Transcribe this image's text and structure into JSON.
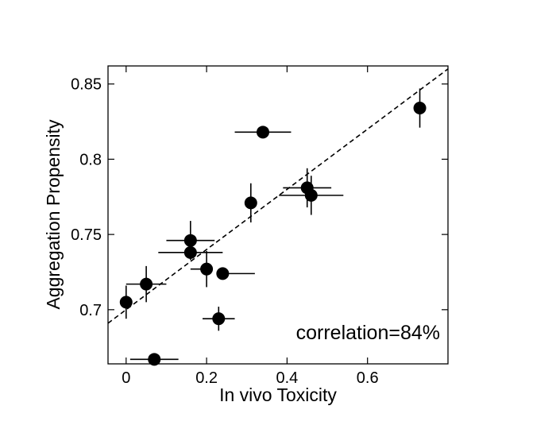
{
  "chart_data": {
    "type": "scatter",
    "xlabel": "In vivo Toxicity",
    "ylabel": "Aggregation Propensity",
    "xlim": [
      -0.045,
      0.8
    ],
    "ylim": [
      0.664,
      0.862
    ],
    "x_ticks": [
      0,
      0.2,
      0.4,
      0.6
    ],
    "x_tick_labels": [
      "0",
      "0.2",
      "0.4",
      "0.6"
    ],
    "y_ticks": [
      0.7,
      0.75,
      0.8,
      0.85
    ],
    "y_tick_labels": [
      "0.7",
      "0.75",
      "0.8",
      "0.85"
    ],
    "grid": false,
    "annotation": "correlation=84%",
    "fit_line": {
      "style": "dashed",
      "from": [
        -0.045,
        0.691
      ],
      "to": [
        0.8,
        0.86
      ]
    },
    "points": [
      {
        "x": 0.0,
        "y": 0.705,
        "xerr": [
          0.0,
          0.0
        ],
        "yerr": [
          0.011,
          0.011
        ]
      },
      {
        "x": 0.05,
        "y": 0.717,
        "xerr": [
          0.05,
          0.05
        ],
        "yerr": [
          0.012,
          0.012
        ]
      },
      {
        "x": 0.07,
        "y": 0.667,
        "xerr": [
          0.06,
          0.06
        ],
        "yerr": [
          0.0,
          0.0
        ]
      },
      {
        "x": 0.16,
        "y": 0.746,
        "xerr": [
          0.06,
          0.06
        ],
        "yerr": [
          0.013,
          0.013
        ]
      },
      {
        "x": 0.16,
        "y": 0.738,
        "xerr": [
          0.08,
          0.08
        ],
        "yerr": [
          0.0,
          0.0
        ]
      },
      {
        "x": 0.2,
        "y": 0.727,
        "xerr": [
          0.04,
          0.0
        ],
        "yerr": [
          0.012,
          0.012
        ]
      },
      {
        "x": 0.24,
        "y": 0.724,
        "xerr": [
          0.0,
          0.08
        ],
        "yerr": [
          0.0,
          0.0
        ]
      },
      {
        "x": 0.23,
        "y": 0.694,
        "xerr": [
          0.04,
          0.04
        ],
        "yerr": [
          0.008,
          0.008
        ]
      },
      {
        "x": 0.31,
        "y": 0.771,
        "xerr": [
          0.0,
          0.0
        ],
        "yerr": [
          0.013,
          0.013
        ]
      },
      {
        "x": 0.34,
        "y": 0.818,
        "xerr": [
          0.07,
          0.07
        ],
        "yerr": [
          0.0,
          0.0
        ]
      },
      {
        "x": 0.45,
        "y": 0.781,
        "xerr": [
          0.06,
          0.06
        ],
        "yerr": [
          0.013,
          0.013
        ]
      },
      {
        "x": 0.46,
        "y": 0.776,
        "xerr": [
          0.08,
          0.08
        ],
        "yerr": [
          0.013,
          0.013
        ]
      },
      {
        "x": 0.73,
        "y": 0.834,
        "xerr": [
          0.0,
          0.0
        ],
        "yerr": [
          0.013,
          0.013
        ]
      }
    ]
  }
}
